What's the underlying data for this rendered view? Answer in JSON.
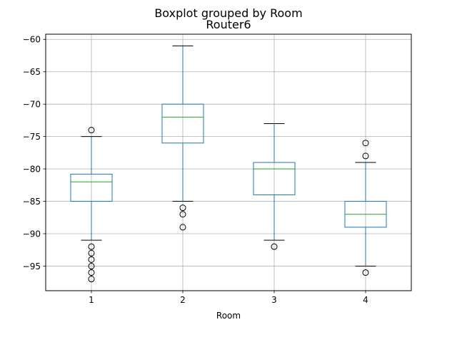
{
  "chart_data": {
    "type": "boxplot",
    "suptitle": "Boxplot grouped by Room",
    "title": "Router6",
    "xlabel": "Room",
    "ylabel": "",
    "categories": [
      "1",
      "2",
      "3",
      "4"
    ],
    "ylim": [
      -98.8,
      -59.2
    ],
    "yticks": [
      -60,
      -65,
      -70,
      -75,
      -80,
      -85,
      -90,
      -95
    ],
    "grid": true,
    "legend": "none",
    "boxes": [
      {
        "category": "1",
        "whisker_low": -91,
        "q1": -85,
        "median": -82,
        "q3": -80.8,
        "whisker_high": -75,
        "fliers": [
          -74,
          -92,
          -93,
          -94,
          -95,
          -96,
          -97
        ]
      },
      {
        "category": "2",
        "whisker_low": -85,
        "q1": -76,
        "median": -72,
        "q3": -70,
        "whisker_high": -61,
        "fliers": [
          -86,
          -87,
          -89
        ]
      },
      {
        "category": "3",
        "whisker_low": -91,
        "q1": -84,
        "median": -80,
        "q3": -79,
        "whisker_high": -73,
        "fliers": [
          -92
        ]
      },
      {
        "category": "4",
        "whisker_low": -95,
        "q1": -89,
        "median": -87,
        "q3": -85,
        "whisker_high": -79,
        "fliers": [
          -76,
          -78,
          -96
        ]
      }
    ],
    "colors": {
      "box": "#1f77b4",
      "median": "#2ca02c",
      "whisker": "#1f77b4",
      "cap": "#000000",
      "flier": "#000000",
      "grid": "#b0b0b0"
    }
  }
}
